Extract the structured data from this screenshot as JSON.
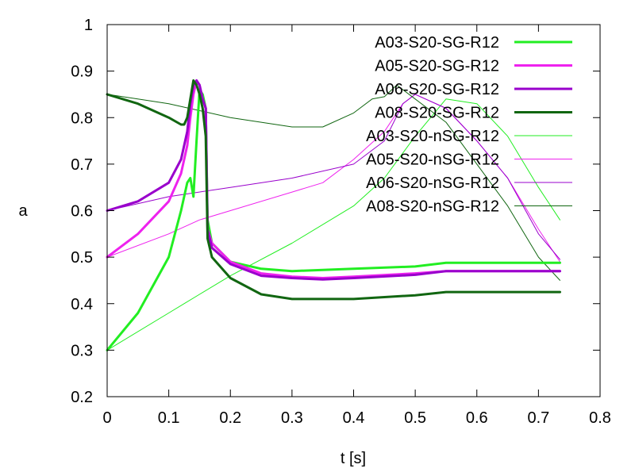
{
  "chart_data": {
    "type": "line",
    "title": "",
    "xlabel": "t [s]",
    "ylabel": "a",
    "xlim": [
      0,
      0.8
    ],
    "ylim": [
      0.2,
      1.0
    ],
    "xticks": [
      "0",
      "0.1",
      "0.2",
      "0.3",
      "0.4",
      "0.5",
      "0.6",
      "0.7",
      "0.8"
    ],
    "yticks": [
      "0.2",
      "0.3",
      "0.4",
      "0.5",
      "0.6",
      "0.7",
      "0.8",
      "0.9",
      "1"
    ],
    "legend_position": "top-right",
    "grid": false,
    "series": [
      {
        "name": "A03-S20-SG-R12",
        "color": "#22ee22",
        "style": "thick",
        "x": [
          0,
          0.05,
          0.1,
          0.12,
          0.13,
          0.135,
          0.14,
          0.145,
          0.15,
          0.155,
          0.16,
          0.163,
          0.17,
          0.2,
          0.25,
          0.3,
          0.4,
          0.5,
          0.55,
          0.6,
          0.7,
          0.735
        ],
        "y": [
          0.3,
          0.38,
          0.5,
          0.6,
          0.66,
          0.67,
          0.63,
          0.75,
          0.86,
          0.85,
          0.82,
          0.58,
          0.53,
          0.49,
          0.475,
          0.47,
          0.475,
          0.48,
          0.488,
          0.488,
          0.488,
          0.488
        ]
      },
      {
        "name": "A05-S20-SG-R12",
        "color": "#ee22ee",
        "style": "thick",
        "x": [
          0,
          0.05,
          0.1,
          0.12,
          0.13,
          0.135,
          0.14,
          0.145,
          0.15,
          0.155,
          0.16,
          0.163,
          0.17,
          0.2,
          0.25,
          0.3,
          0.35,
          0.4,
          0.5,
          0.55,
          0.6,
          0.7,
          0.735
        ],
        "y": [
          0.5,
          0.55,
          0.62,
          0.68,
          0.74,
          0.8,
          0.85,
          0.88,
          0.87,
          0.84,
          0.82,
          0.56,
          0.53,
          0.49,
          0.465,
          0.458,
          0.455,
          0.458,
          0.465,
          0.47,
          0.47,
          0.47,
          0.47
        ]
      },
      {
        "name": "A06-S20-SG-R12",
        "color": "#9900cc",
        "style": "thick",
        "x": [
          0,
          0.05,
          0.1,
          0.12,
          0.13,
          0.135,
          0.14,
          0.145,
          0.15,
          0.155,
          0.16,
          0.163,
          0.17,
          0.2,
          0.25,
          0.3,
          0.35,
          0.4,
          0.5,
          0.55,
          0.6,
          0.7,
          0.735
        ],
        "y": [
          0.6,
          0.62,
          0.66,
          0.71,
          0.77,
          0.83,
          0.87,
          0.88,
          0.87,
          0.84,
          0.82,
          0.56,
          0.52,
          0.485,
          0.46,
          0.455,
          0.452,
          0.455,
          0.462,
          0.47,
          0.47,
          0.47,
          0.47
        ]
      },
      {
        "name": "A08-S20-SG-R12",
        "color": "#116611",
        "style": "thick",
        "x": [
          0,
          0.05,
          0.1,
          0.12,
          0.125,
          0.13,
          0.135,
          0.14,
          0.145,
          0.15,
          0.155,
          0.16,
          0.163,
          0.17,
          0.2,
          0.25,
          0.3,
          0.4,
          0.5,
          0.55,
          0.6,
          0.7,
          0.735
        ],
        "y": [
          0.85,
          0.83,
          0.8,
          0.785,
          0.785,
          0.8,
          0.84,
          0.88,
          0.87,
          0.85,
          0.82,
          0.76,
          0.54,
          0.5,
          0.455,
          0.42,
          0.41,
          0.41,
          0.418,
          0.425,
          0.425,
          0.425,
          0.425
        ]
      },
      {
        "name": "A03-S20-nSG-R12",
        "color": "#22ee22",
        "style": "thin",
        "x": [
          0,
          0.1,
          0.15,
          0.2,
          0.3,
          0.4,
          0.45,
          0.5,
          0.55,
          0.6,
          0.65,
          0.7,
          0.735
        ],
        "y": [
          0.3,
          0.38,
          0.42,
          0.46,
          0.53,
          0.61,
          0.67,
          0.76,
          0.84,
          0.83,
          0.76,
          0.65,
          0.58
        ]
      },
      {
        "name": "A05-S20-nSG-R12",
        "color": "#ee22ee",
        "style": "thin",
        "x": [
          0,
          0.1,
          0.15,
          0.2,
          0.3,
          0.35,
          0.4,
          0.45,
          0.48,
          0.5,
          0.55,
          0.6,
          0.65,
          0.7,
          0.735
        ],
        "y": [
          0.5,
          0.55,
          0.58,
          0.6,
          0.64,
          0.66,
          0.71,
          0.77,
          0.83,
          0.85,
          0.82,
          0.75,
          0.67,
          0.56,
          0.49
        ]
      },
      {
        "name": "A06-S20-nSG-R12",
        "color": "#9900cc",
        "style": "thin",
        "x": [
          0,
          0.1,
          0.2,
          0.3,
          0.4,
          0.45,
          0.48,
          0.5,
          0.55,
          0.6,
          0.65,
          0.7,
          0.735
        ],
        "y": [
          0.6,
          0.63,
          0.65,
          0.67,
          0.7,
          0.75,
          0.83,
          0.85,
          0.82,
          0.75,
          0.67,
          0.55,
          0.495
        ]
      },
      {
        "name": "A08-S20-nSG-R12",
        "color": "#116611",
        "style": "thin",
        "x": [
          0,
          0.1,
          0.2,
          0.3,
          0.35,
          0.4,
          0.43,
          0.45,
          0.47,
          0.5,
          0.55,
          0.6,
          0.65,
          0.7,
          0.735
        ],
        "y": [
          0.85,
          0.83,
          0.8,
          0.78,
          0.78,
          0.81,
          0.84,
          0.845,
          0.87,
          0.84,
          0.79,
          0.7,
          0.61,
          0.5,
          0.45
        ]
      }
    ]
  }
}
